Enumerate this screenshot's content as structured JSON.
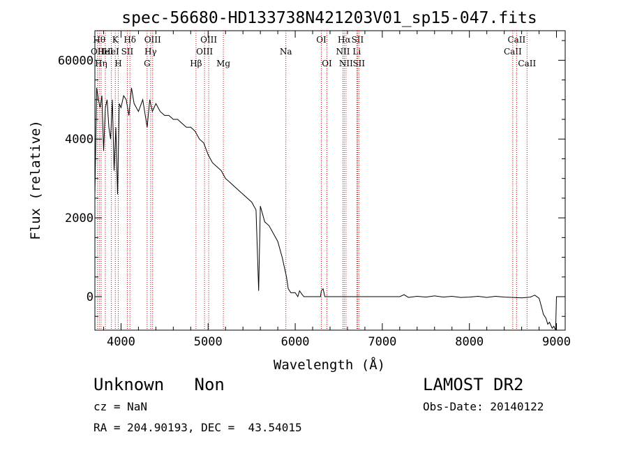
{
  "chart_data": {
    "type": "line",
    "title": "spec-56680-HD133738N421203V01_sp15-047.fits",
    "xlabel": "Wavelength (Å)",
    "ylabel": "Flux (relative)",
    "xlim": [
      3700,
      9100
    ],
    "ylim": [
      -850,
      6750
    ],
    "x_ticks": [
      4000,
      5000,
      6000,
      7000,
      8000,
      9000
    ],
    "y_ticks": [
      0,
      2000,
      4000,
      6000
    ],
    "y_tick_labels": [
      "0",
      "2000",
      "4000",
      "6000"
    ],
    "y_top_label": "60000",
    "grid": false,
    "line_color": "#000000",
    "marker_color": "#cc0000",
    "series": [
      {
        "x": [
          3700,
          3720,
          3740,
          3760,
          3780,
          3800,
          3820,
          3840,
          3860,
          3880,
          3900,
          3920,
          3940,
          3960,
          3980,
          4000,
          4030,
          4060,
          4090,
          4120,
          4150,
          4200,
          4250,
          4300,
          4330,
          4360,
          4400,
          4450,
          4500,
          4550,
          4600,
          4650,
          4700,
          4750,
          4800,
          4850,
          4900,
          4950,
          5000,
          5050,
          5100,
          5150,
          5200,
          5250,
          5300,
          5350,
          5400,
          5450,
          5500,
          5550,
          5580,
          5600,
          5650,
          5700,
          5750,
          5800,
          5850,
          5880,
          5900,
          5920,
          5950,
          6000,
          6030,
          6050,
          6080,
          6100,
          6150,
          6200,
          6250,
          6290,
          6300,
          6320,
          6340,
          6400,
          6500,
          6600,
          6700,
          6800,
          6900,
          7000,
          7100,
          7200,
          7250,
          7300,
          7400,
          7500,
          7600,
          7700,
          7800,
          7900,
          8000,
          8100,
          8200,
          8300,
          8400,
          8500,
          8600,
          8700,
          8750,
          8800,
          8820,
          8850,
          8880,
          8900,
          8920,
          8950,
          8970,
          8990,
          9000,
          9020,
          9050
        ],
        "y": [
          2600,
          5300,
          5000,
          4800,
          5100,
          3700,
          4800,
          5000,
          4300,
          4000,
          5000,
          3200,
          4300,
          2600,
          4900,
          4800,
          5100,
          5000,
          4600,
          5300,
          4900,
          4700,
          5000,
          4300,
          5000,
          4700,
          4900,
          4700,
          4600,
          4600,
          4500,
          4500,
          4400,
          4300,
          4300,
          4200,
          4000,
          3900,
          3600,
          3400,
          3300,
          3200,
          3000,
          2900,
          2800,
          2700,
          2600,
          2500,
          2400,
          2200,
          150,
          2300,
          1900,
          1800,
          1600,
          1400,
          1000,
          700,
          500,
          200,
          100,
          100,
          0,
          150,
          50,
          0,
          0,
          0,
          0,
          0,
          150,
          200,
          0,
          0,
          0,
          0,
          0,
          0,
          0,
          0,
          0,
          0,
          50,
          -20,
          10,
          -10,
          20,
          -10,
          10,
          -20,
          -10,
          10,
          -20,
          10,
          -10,
          -20,
          -30,
          -10,
          40,
          -40,
          -200,
          -450,
          -550,
          -700,
          -650,
          -800,
          -750,
          -850,
          0,
          0,
          0
        ]
      }
    ],
    "line_markers": [
      {
        "x": 3750,
        "label": "Hθ",
        "row": 0
      },
      {
        "x": 3729,
        "label": "OII",
        "row": 1
      },
      {
        "x": 3771,
        "label": "Hη",
        "row": 2
      },
      {
        "x": 3820,
        "label": "HeI",
        "row": 1
      },
      {
        "x": 3889,
        "label": "HeI",
        "row": 1
      },
      {
        "x": 3934,
        "label": "K",
        "row": 0
      },
      {
        "x": 3968,
        "label": "H",
        "row": 2
      },
      {
        "x": 4072,
        "label": "SII",
        "row": 1
      },
      {
        "x": 4102,
        "label": "Hδ",
        "row": 0
      },
      {
        "x": 4300,
        "label": "G",
        "row": 2
      },
      {
        "x": 4340,
        "label": "Hγ",
        "row": 1
      },
      {
        "x": 4363,
        "label": "OIII",
        "row": 0
      },
      {
        "x": 4861,
        "label": "Hβ",
        "row": 2
      },
      {
        "x": 4959,
        "label": "OIII",
        "row": 1
      },
      {
        "x": 5007,
        "label": "OIII",
        "row": 0
      },
      {
        "x": 5175,
        "label": "Mg",
        "row": 2
      },
      {
        "x": 5893,
        "label": "Na",
        "row": 1
      },
      {
        "x": 6300,
        "label": "OI",
        "row": 0
      },
      {
        "x": 6364,
        "label": "OI",
        "row": 2
      },
      {
        "x": 6548,
        "label": "NII",
        "row": 1
      },
      {
        "x": 6563,
        "label": "Hα",
        "row": 0
      },
      {
        "x": 6583,
        "label": "NII",
        "row": 2
      },
      {
        "x": 6707,
        "label": "Li",
        "row": 1
      },
      {
        "x": 6716,
        "label": "SII",
        "row": 0
      },
      {
        "x": 6731,
        "label": "SII",
        "row": 2
      },
      {
        "x": 8498,
        "label": "CaII",
        "row": 1
      },
      {
        "x": 8542,
        "label": "CaII",
        "row": 0
      },
      {
        "x": 8662,
        "label": "CaII",
        "row": 2
      }
    ]
  },
  "info": {
    "classification": "Unknown   Non",
    "survey": "LAMOST DR2",
    "cz": "cz = NaN",
    "obs_date": "Obs-Date: 20140122",
    "coords": "RA = 204.90193, DEC =  43.54015"
  }
}
